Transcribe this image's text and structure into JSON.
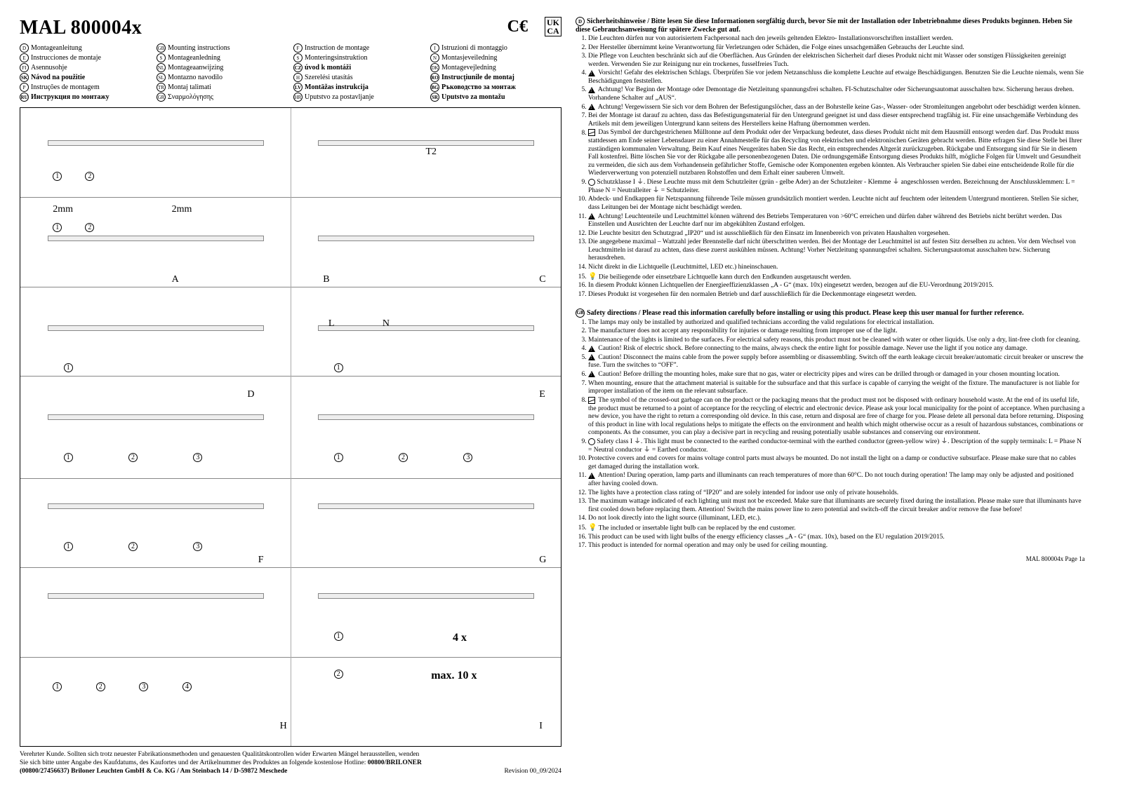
{
  "header": {
    "title": "MAL 800004x",
    "ce": "C€",
    "ukca_top": "UK",
    "ukca_bot": "CA"
  },
  "languages": [
    {
      "code": "D",
      "label": "Montageanleitung"
    },
    {
      "code": "GB",
      "label": "Mounting instructions"
    },
    {
      "code": "F",
      "label": "Instruction de montage"
    },
    {
      "code": "I",
      "label": "Istruzioni di montaggio"
    },
    {
      "code": "E",
      "label": "Instrucciones de montaje"
    },
    {
      "code": "S",
      "label": "Montageanledning"
    },
    {
      "code": "S",
      "label": "Monteringsinstruktion"
    },
    {
      "code": "N",
      "label": "Montasjeveiledning"
    },
    {
      "code": "FI",
      "label": "Asennusohje"
    },
    {
      "code": "NL",
      "label": "Montageaanwijzing"
    },
    {
      "code": "CZ",
      "label": "úvod k montáži",
      "bold": true
    },
    {
      "code": "DK",
      "label": "Montagevejledning"
    },
    {
      "code": "SK",
      "label": "Návod na použitie",
      "bold": true
    },
    {
      "code": "SL",
      "label": "Montazno navodilo"
    },
    {
      "code": "H",
      "label": "Szerelési utasítás"
    },
    {
      "code": "RO",
      "label": "Instrucţiunile de montaj",
      "bold": true
    },
    {
      "code": "P",
      "label": "Instruções de montagem"
    },
    {
      "code": "TR",
      "label": "Montaj talimati"
    },
    {
      "code": "LV",
      "label": "Montāžas instrukcija",
      "bold": true
    },
    {
      "code": "BG",
      "label": "Ръководство за монтаж",
      "bold": true
    },
    {
      "code": "RU",
      "label": "Инструкция по монтажу",
      "bold": true
    },
    {
      "code": "GR",
      "label": "Σναρμολόγησης"
    },
    {
      "code": "HR",
      "label": "Uputstvo za postavljanje"
    },
    {
      "code": "SR",
      "label": "Uputstvo za montažu",
      "bold": true
    }
  ],
  "diagram": {
    "dim_labels": [
      "2mm",
      "2mm"
    ],
    "letters": [
      "A",
      "B",
      "C",
      "D",
      "E",
      "F",
      "G",
      "H",
      "I",
      "L",
      "N",
      "T2"
    ],
    "bottom_note_qty": "4 x",
    "bottom_note_max": "max. 10 x"
  },
  "left_footer": {
    "line1": "Verehrter Kunde. Sollten sich trotz neuester Fabrikationsmethoden und genauesten Qualitätskontrollen wider Erwarten Mängel herausstellen, wenden",
    "line2a": "Sie sich bitte unter Angabe des Kaufdatums, des Kaufortes und der Artikelnummer des Produktes an folgende kostenlose Hotline: ",
    "line2b": "00800/BRILONER",
    "line3a": "(00800/27456637) Briloner Leuchten GmbH & Co. KG / Am Steinbach 14 / D-59872 Meschede",
    "revision": "Revision 00_09/2024"
  },
  "german": {
    "code": "D",
    "heading": "Sicherheitshinweise / Bitte lesen Sie diese Informationen sorgfältig durch, bevor Sie mit der Installation oder Inbetriebnahme dieses Produkts beginnen. Heben Sie diese Gebrauchsanweisung für spätere Zwecke gut auf.",
    "items": [
      {
        "t": "Die Leuchten dürfen nur von autorisiertem Fachpersonal nach den jeweils geltenden Elektro- Installationsvorschriften installiert werden."
      },
      {
        "t": "Der Hersteller übernimmt keine Verantwortung für Verletzungen oder Schäden, die Folge eines unsachgemäßen Gebrauchs der Leuchte sind."
      },
      {
        "t": "Die Pflege von Leuchten beschränkt sich auf die Oberflächen. Aus Gründen der elektrischen Sicherheit darf dieses Produkt nicht mit Wasser oder sonstigen Flüssigkeiten gereinigt werden. Verwenden Sie zur Reinigung nur ein trockenes, fusselfreies Tuch."
      },
      {
        "icon": "warn",
        "t": "Vorsicht! Gefahr des elektrischen Schlags. Überprüfen Sie vor jedem Netzanschluss die komplette Leuchte auf etwaige Beschädigungen. Benutzen Sie die Leuchte niemals, wenn Sie Beschädigungen feststellen."
      },
      {
        "icon": "warn",
        "t": "Achtung! Vor Beginn der Montage oder Demontage die Netzleitung spannungsfrei schalten. FI-Schutzschalter oder Sicherungsautomat ausschalten bzw. Sicherung heraus drehen. Vorhandene Schalter auf „AUS“."
      },
      {
        "icon": "warn",
        "t": "Achtung! Vergewissern Sie sich vor dem Bohren der Befestigungslöcher, dass an der Bohrstelle keine Gas-, Wasser- oder Stromleitungen angebohrt oder beschädigt werden können."
      },
      {
        "t": "Bei der Montage ist darauf zu achten, dass das Befestigungsmaterial für den Untergrund geeignet ist und dass dieser entsprechend tragfähig ist. Für eine unsachgemäße Verbindung des Artikels mit dem jeweiligen Untergrund kann seitens des Herstellers keine Haftung übernommen werden."
      },
      {
        "icon": "bin",
        "t": "Das Symbol der durchgestrichenen Mülltonne auf dem Produkt oder der Verpackung bedeutet, dass dieses Produkt nicht mit dem Hausmüll entsorgt werden darf. Das Produkt muss stattdessen am Ende seiner Lebensdauer zu einer Annahmestelle für das Recycling von elektrischen und elektronischen Geräten gebracht werden. Bitte erfragen Sie diese Stelle bei Ihrer zuständigen kommunalen Verwaltung. Beim Kauf eines Neugerätes haben Sie das Recht, ein entsprechendes Altgerät zurückzugeben. Rückgabe und Entsorgung sind für Sie in diesem Fall kostenfrei. Bitte löschen Sie vor der Rückgabe alle personenbezogenen Daten. Die ordnungsgemäße Entsorgung dieses Produkts hilft, mögliche Folgen für Umwelt und Gesundheit zu vermeiden, die sich aus dem Vorhandensein gefährlicher Stoffe, Gemische oder Komponenten ergeben könnten. Als Verbraucher spielen Sie dabei eine entscheidende Rolle für die Wiederverwertung von potenziell nutzbaren Rohstoffen und dem Erhalt einer sauberen Umwelt."
      },
      {
        "icon": "earth",
        "t": "Schutzklasse I ⏚. Diese Leuchte muss mit dem Schutzleiter (grün - gelbe Ader) an der Schutzleiter - Klemme ⏚ angeschlossen werden. Bezeichnung der Anschlussklemmen:  L = Phase  N = Neutralleiter  ⏚ = Schutzleiter."
      },
      {
        "t": "Abdeck- und Endkappen für Netzspannung führende Teile müssen grundsätzlich montiert werden. Leuchte nicht auf feuchtem oder leitendem Untergrund montieren. Stellen Sie sicher, dass Leitungen bei der Montage nicht beschädigt werden."
      },
      {
        "icon": "warn",
        "t": "Achtung! Leuchtenteile und Leuchtmittel können während des Betriebs Temperaturen von >60°C erreichen und dürfen daher während des Betriebs nicht berührt werden. Das Einstellen und Ausrichten der Leuchte darf nur im abgekühlten Zustand erfolgen."
      },
      {
        "t": "Die Leuchte besitzt den Schutzgrad „IP20“ und ist ausschließlich für den Einsatz im Innenbereich von privaten Haushalten vorgesehen."
      },
      {
        "t": "Die angegebene maximal – Wattzahl jeder Brennstelle darf nicht überschritten werden. Bei der Montage der Leuchtmittel ist auf festen Sitz derselben zu achten. Vor dem Wechsel von Leuchtmitteln ist darauf zu achten, dass diese zuerst auskühlen müssen. Achtung! Vorher Netzleitung spannungsfrei schalten. Sicherungsautomat ausschalten bzw. Sicherung herausdrehen."
      },
      {
        "t": "Nicht direkt in die Lichtquelle (Leuchtmittel, LED etc.) hineinschauen."
      },
      {
        "icon": "bulb",
        "t": "Die beiliegende oder einsetzbare Lichtquelle kann durch den Endkunden ausgetauscht werden."
      },
      {
        "t": "In diesem Produkt können Lichtquellen der Energieeffizienzklassen „A - G“ (max. 10x) eingesetzt werden, bezogen auf die EU-Verordnung 2019/2015."
      },
      {
        "t": "Dieses Produkt ist vorgesehen für den normalen Betrieb und darf ausschließlich für die Deckenmontage eingesetzt werden."
      }
    ]
  },
  "english": {
    "code": "GB",
    "heading": "Safety directions / Please read this information carefully before installing or using this product. Please keep this user manual for further reference.",
    "items": [
      {
        "t": "The lamps may only be installed by authorized and qualified technicians according the valid regulations for electrical installation."
      },
      {
        "t": "The manufacturer does not accept any responsibility for injuries or damage resulting from improper use of the light."
      },
      {
        "t": "Maintenance of the lights is limited to the surfaces. For electrical safety reasons, this product must not be cleaned with water or other liquids. Use only a dry, lint-free cloth for cleaning."
      },
      {
        "icon": "warn",
        "t": "Caution! Risk of electric shock. Before connecting to the mains, always check the entire light for possible damage. Never use the light if you notice any damage."
      },
      {
        "icon": "warn",
        "t": "Caution! Disconnect the mains cable from the power supply before assembling or disassembling. Switch off the earth leakage circuit breaker/automatic circuit breaker or unscrew the fuse. Turn the switches to “OFF”."
      },
      {
        "icon": "warn",
        "t": "Caution! Before drilling the mounting holes, make sure that no gas, water or electricity pipes and wires can be drilled through or damaged in your chosen mounting location."
      },
      {
        "t": "When mounting, ensure that the attachment material is suitable for the subsurface and that this surface is capable of carrying the weight of the fixture. The manufacturer is not liable for improper installation of the item on the relevant subsurface."
      },
      {
        "icon": "bin",
        "t": "The symbol of the crossed-out garbage can on the product or the packaging means that the product must not be disposed with ordinary household waste. At the end of its useful life, the product must be returned to a point of acceptance for the recycling of electric and electronic device. Please ask your local municipality for the point of acceptance. When purchasing a new device, you have the right to return a corresponding old device. In this case, return and disposal are free of charge for you. Please delete all personal data before returning. Disposing of this product in line with local regulations helps to mitigate the effects on the environment and health which might otherwise occur as a result of hazardous substances, combinations or components. As the consumer, you can play a decisive part in recycling and reusing potentially usable substances and conserving our environment."
      },
      {
        "icon": "earth",
        "t": "Safety class I ⏚. This light must be connected to the earthed conductor-terminal with the earthed conductor (green-yellow wire) ⏚. Description of the supply terminals: L = Phase  N = Neutral conductor  ⏚ = Earthed conductor."
      },
      {
        "t": "Protective covers and end covers for mains voltage control parts must always be mounted. Do not install the light on a damp or conductive subsurface. Please make sure that no cables get damaged during the installation work."
      },
      {
        "icon": "warn",
        "t": "Attention! During operation, lamp parts and illuminants can reach temperatures of more than 60°C. Do not touch during operation! The lamp may only be adjusted and positioned after having cooled down."
      },
      {
        "t": "The lights have a protection class rating of “IP20” and are solely intended for indoor use only of private households."
      },
      {
        "t": "The maximum wattage indicated of each lighting unit must not be exceeded. Make sure that illuminants are securely fixed during the installation. Please make sure that illuminants have first cooled down before replacing them. Attention! Switch the mains power line to zero potential and switch-off the circuit breaker and/or remove the fuse before!"
      },
      {
        "t": "Do not look directly into the light source (illuminant, LED, etc.)."
      },
      {
        "icon": "bulb",
        "t": "The included or insertable light bulb can be replaced by the end customer."
      },
      {
        "t": "This product can be used with light bulbs of the energy efficiency classes „A - G“ (max. 10x), based on the EU regulation 2019/2015."
      },
      {
        "t": "This product is intended for normal operation and may only be used for ceiling mounting."
      }
    ]
  },
  "right_footer": "MAL 800004x Page 1a"
}
